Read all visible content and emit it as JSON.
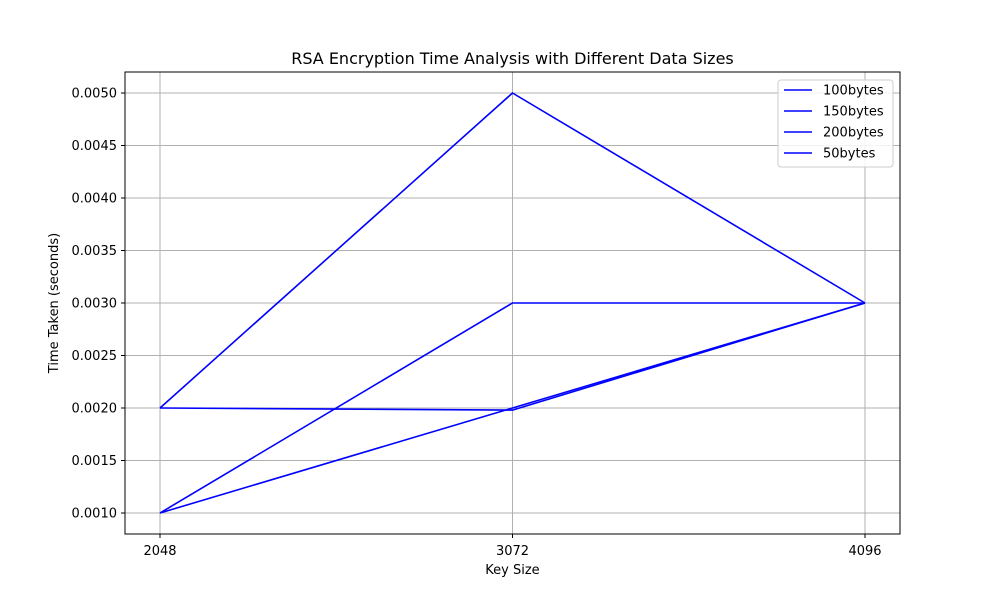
{
  "chart_data": {
    "type": "line",
    "title": "RSA Encryption Time Analysis with Different Data Sizes",
    "xlabel": "Key Size",
    "ylabel": "Time Taken (seconds)",
    "x": [
      2048,
      3072,
      4096
    ],
    "x_tick_labels": [
      "2048",
      "3072",
      "4096"
    ],
    "ylim": [
      0.0008,
      0.0052
    ],
    "y_ticks": [
      0.001,
      0.0015,
      0.002,
      0.0025,
      0.003,
      0.0035,
      0.004,
      0.0045,
      0.005
    ],
    "y_tick_labels": [
      "0.0010",
      "0.0015",
      "0.0020",
      "0.0025",
      "0.0030",
      "0.0035",
      "0.0040",
      "0.0045",
      "0.0050"
    ],
    "grid": true,
    "legend_position": "top-right",
    "series": [
      {
        "name": "100bytes",
        "color": "#0000ff",
        "values": [
          0.002,
          0.005,
          0.003
        ]
      },
      {
        "name": "150bytes",
        "color": "#0000ff",
        "values": [
          0.001,
          0.003,
          0.003
        ]
      },
      {
        "name": "200bytes",
        "color": "#0000ff",
        "values": [
          0.002,
          0.00198,
          0.003
        ]
      },
      {
        "name": "50bytes",
        "color": "#0000ff",
        "values": [
          0.001,
          0.002,
          0.003
        ]
      }
    ]
  }
}
